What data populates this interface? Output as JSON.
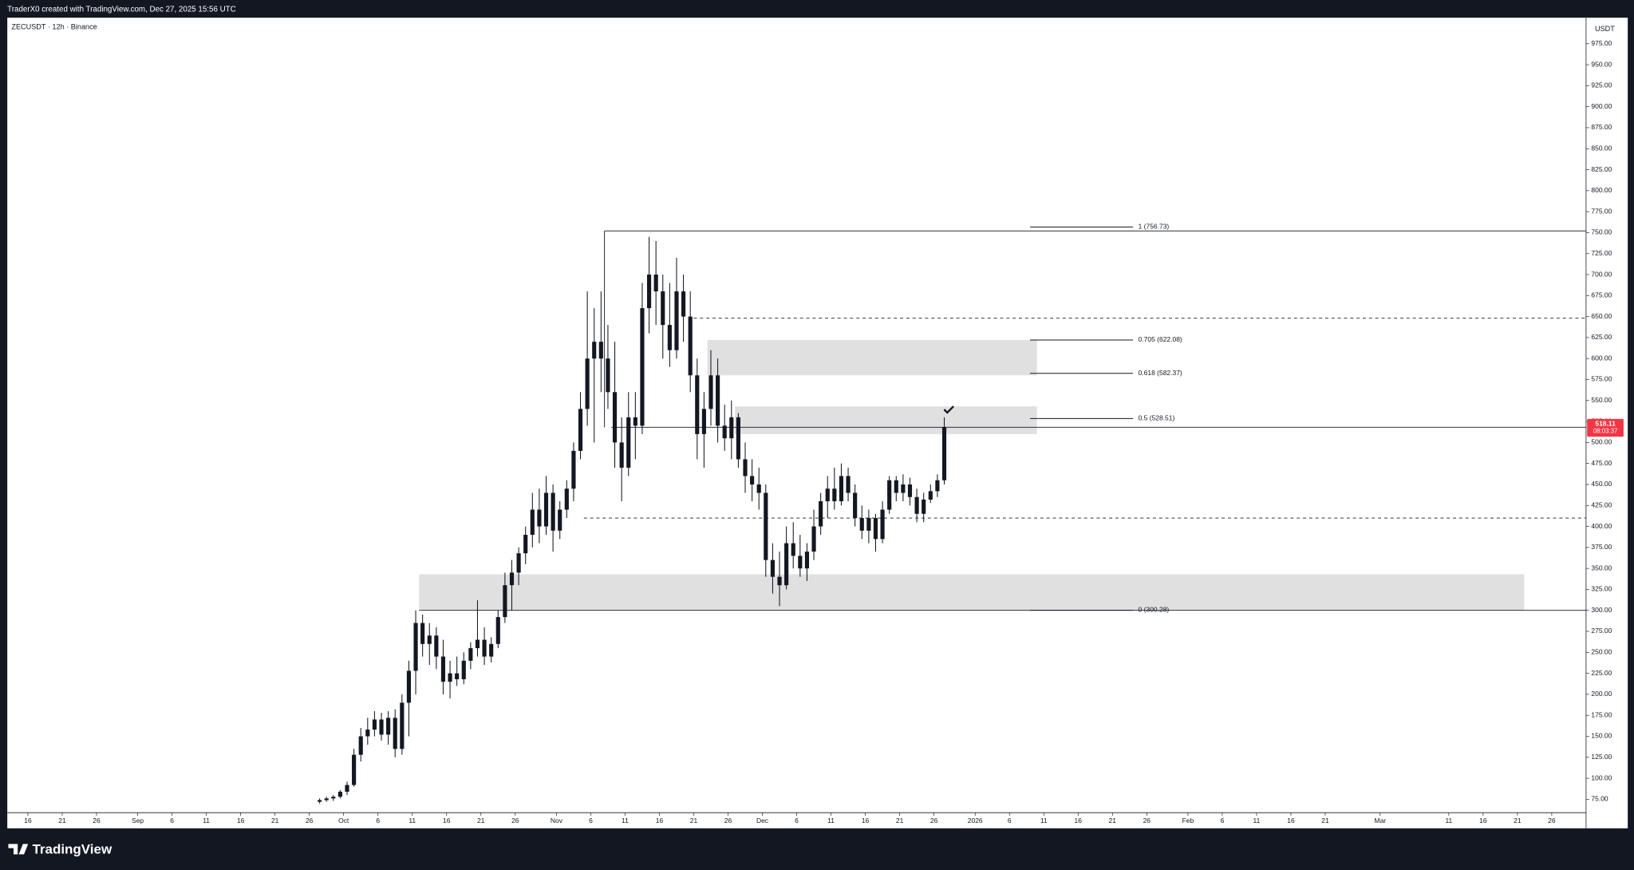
{
  "header": {
    "credit": "TraderX0 created with TradingView.com, Dec 27, 2025 15:56 UTC",
    "brand": "TradingView"
  },
  "chart_data": {
    "type": "candlestick",
    "title": "ZECUSDT · 12h · Binance",
    "y_axis_label": "USDT",
    "color": "#131722",
    "x": [
      "2025-09-27",
      "2025-09-28",
      "2025-09-29",
      "2025-09-30",
      "2025-10-01",
      "2025-10-02",
      "2025-10-03",
      "2025-10-04",
      "2025-10-05",
      "2025-10-06",
      "2025-10-07",
      "2025-10-08",
      "2025-10-09",
      "2025-10-10",
      "2025-10-11",
      "2025-10-12",
      "2025-10-13",
      "2025-10-14",
      "2025-10-15",
      "2025-10-16",
      "2025-10-17",
      "2025-10-18",
      "2025-10-19",
      "2025-10-20",
      "2025-10-21",
      "2025-10-22",
      "2025-10-23",
      "2025-10-24",
      "2025-10-25",
      "2025-10-26",
      "2025-10-27",
      "2025-10-28",
      "2025-10-29",
      "2025-10-30",
      "2025-10-31",
      "2025-11-01",
      "2025-11-02",
      "2025-11-03",
      "2025-11-04",
      "2025-11-05",
      "2025-11-06",
      "2025-11-07",
      "2025-11-08",
      "2025-11-09",
      "2025-11-10",
      "2025-11-11",
      "2025-11-12",
      "2025-11-13",
      "2025-11-14",
      "2025-11-15",
      "2025-11-16",
      "2025-11-17",
      "2025-11-18",
      "2025-11-19",
      "2025-11-20",
      "2025-11-21",
      "2025-11-22",
      "2025-11-23",
      "2025-11-24",
      "2025-11-25",
      "2025-11-26",
      "2025-11-27",
      "2025-11-28",
      "2025-11-29",
      "2025-11-30",
      "2025-12-01",
      "2025-12-02",
      "2025-12-03",
      "2025-12-04",
      "2025-12-05",
      "2025-12-06",
      "2025-12-07",
      "2025-12-08",
      "2025-12-09",
      "2025-12-10",
      "2025-12-11",
      "2025-12-12",
      "2025-12-13",
      "2025-12-14",
      "2025-12-15",
      "2025-12-16",
      "2025-12-17",
      "2025-12-18",
      "2025-12-19",
      "2025-12-20",
      "2025-12-21",
      "2025-12-22",
      "2025-12-23",
      "2025-12-24",
      "2025-12-25",
      "2025-12-26",
      "2025-12-27"
    ],
    "open": [
      72,
      74,
      76,
      78,
      84,
      92,
      128,
      150,
      158,
      170,
      152,
      172,
      135,
      190,
      228,
      285,
      260,
      270,
      245,
      215,
      225,
      218,
      240,
      255,
      265,
      245,
      260,
      292,
      330,
      345,
      368,
      390,
      420,
      400,
      440,
      395,
      420,
      445,
      490,
      540,
      600,
      620,
      600,
      560,
      500,
      470,
      530,
      520,
      660,
      700,
      680,
      640,
      610,
      680,
      650,
      580,
      510,
      540,
      580,
      520,
      505,
      530,
      480,
      460,
      450,
      440,
      360,
      340,
      330,
      380,
      365,
      350,
      370,
      400,
      430,
      445,
      430,
      460,
      440,
      410,
      395,
      410,
      385,
      420,
      455,
      440,
      450,
      435,
      415,
      432,
      442,
      455
    ],
    "high": [
      76,
      78,
      80,
      86,
      96,
      135,
      160,
      172,
      180,
      178,
      180,
      182,
      200,
      240,
      300,
      295,
      285,
      280,
      265,
      240,
      245,
      250,
      262,
      312,
      280,
      268,
      300,
      345,
      360,
      375,
      400,
      440,
      445,
      460,
      450,
      430,
      455,
      500,
      560,
      680,
      660,
      680,
      640,
      620,
      530,
      560,
      560,
      690,
      745,
      740,
      700,
      690,
      720,
      700,
      680,
      600,
      560,
      610,
      600,
      545,
      550,
      535,
      500,
      480,
      470,
      450,
      380,
      370,
      400,
      405,
      390,
      380,
      420,
      440,
      460,
      470,
      475,
      470,
      450,
      425,
      420,
      415,
      430,
      460,
      460,
      462,
      458,
      445,
      440,
      450,
      462,
      530
    ],
    "low": [
      70,
      72,
      73,
      76,
      80,
      90,
      120,
      140,
      150,
      145,
      140,
      125,
      128,
      150,
      200,
      245,
      235,
      230,
      200,
      195,
      210,
      212,
      230,
      245,
      235,
      238,
      255,
      285,
      300,
      330,
      355,
      375,
      380,
      390,
      370,
      385,
      410,
      430,
      480,
      520,
      500,
      560,
      540,
      470,
      430,
      460,
      480,
      510,
      630,
      640,
      600,
      590,
      600,
      620,
      560,
      480,
      470,
      520,
      500,
      490,
      480,
      470,
      440,
      430,
      420,
      340,
      320,
      305,
      325,
      350,
      340,
      335,
      360,
      390,
      410,
      420,
      425,
      430,
      400,
      385,
      380,
      370,
      380,
      415,
      430,
      430,
      425,
      405,
      405,
      428,
      435,
      450
    ],
    "close": [
      74,
      76,
      78,
      84,
      92,
      128,
      150,
      158,
      170,
      152,
      172,
      135,
      190,
      228,
      285,
      260,
      270,
      245,
      215,
      225,
      218,
      240,
      255,
      265,
      245,
      260,
      292,
      330,
      345,
      368,
      390,
      420,
      400,
      440,
      395,
      420,
      445,
      490,
      540,
      600,
      620,
      600,
      560,
      500,
      470,
      530,
      520,
      660,
      700,
      680,
      640,
      610,
      680,
      650,
      580,
      510,
      540,
      580,
      520,
      505,
      530,
      480,
      460,
      450,
      440,
      360,
      340,
      330,
      380,
      365,
      350,
      370,
      400,
      430,
      445,
      430,
      460,
      440,
      410,
      395,
      410,
      385,
      420,
      455,
      440,
      450,
      435,
      415,
      432,
      442,
      455,
      518.11
    ],
    "last_price": 518.11,
    "countdown": "08:03:37",
    "price_tag_color": "#f23645",
    "xlim": [
      "2025-08-13",
      "2026-03-31"
    ],
    "xticks": [
      {
        "value": "2025-08-16",
        "label": "16"
      },
      {
        "value": "2025-08-21",
        "label": "21"
      },
      {
        "value": "2025-08-26",
        "label": "26"
      },
      {
        "value": "2025-09-01",
        "label": "Sep"
      },
      {
        "value": "2025-09-06",
        "label": "6"
      },
      {
        "value": "2025-09-11",
        "label": "11"
      },
      {
        "value": "2025-09-16",
        "label": "16"
      },
      {
        "value": "2025-09-21",
        "label": "21"
      },
      {
        "value": "2025-09-26",
        "label": "26"
      },
      {
        "value": "2025-10-01",
        "label": "Oct"
      },
      {
        "value": "2025-10-06",
        "label": "6"
      },
      {
        "value": "2025-10-11",
        "label": "11"
      },
      {
        "value": "2025-10-16",
        "label": "16"
      },
      {
        "value": "2025-10-21",
        "label": "21"
      },
      {
        "value": "2025-10-26",
        "label": "26"
      },
      {
        "value": "2025-11-01",
        "label": "Nov"
      },
      {
        "value": "2025-11-06",
        "label": "6"
      },
      {
        "value": "2025-11-11",
        "label": "11"
      },
      {
        "value": "2025-11-16",
        "label": "16"
      },
      {
        "value": "2025-11-21",
        "label": "21"
      },
      {
        "value": "2025-11-26",
        "label": "26"
      },
      {
        "value": "2025-12-01",
        "label": "Dec"
      },
      {
        "value": "2025-12-06",
        "label": "6"
      },
      {
        "value": "2025-12-11",
        "label": "11"
      },
      {
        "value": "2025-12-16",
        "label": "16"
      },
      {
        "value": "2025-12-21",
        "label": "21"
      },
      {
        "value": "2025-12-26",
        "label": "26"
      },
      {
        "value": "2026-01-01",
        "label": "2026"
      },
      {
        "value": "2026-01-06",
        "label": "6"
      },
      {
        "value": "2026-01-11",
        "label": "11"
      },
      {
        "value": "2026-01-16",
        "label": "16"
      },
      {
        "value": "2026-01-21",
        "label": "21"
      },
      {
        "value": "2026-01-26",
        "label": "26"
      },
      {
        "value": "2026-02-01",
        "label": "Feb"
      },
      {
        "value": "2026-02-06",
        "label": "6"
      },
      {
        "value": "2026-02-11",
        "label": "11"
      },
      {
        "value": "2026-02-16",
        "label": "16"
      },
      {
        "value": "2026-02-21",
        "label": "21"
      },
      {
        "value": "2026-03-01",
        "label": "Mar"
      },
      {
        "value": "2026-03-11",
        "label": "11"
      },
      {
        "value": "2026-03-16",
        "label": "16"
      },
      {
        "value": "2026-03-21",
        "label": "21"
      },
      {
        "value": "2026-03-26",
        "label": "26"
      }
    ],
    "ylim": [
      59,
      1006
    ],
    "yticks": [
      {
        "value": 75,
        "label": "75.00"
      },
      {
        "value": 100,
        "label": "100.00"
      },
      {
        "value": 125,
        "label": "125.00"
      },
      {
        "value": 150,
        "label": "150.00"
      },
      {
        "value": 175,
        "label": "175.00"
      },
      {
        "value": 200,
        "label": "200.00"
      },
      {
        "value": 225,
        "label": "225.00"
      },
      {
        "value": 250,
        "label": "250.00"
      },
      {
        "value": 275,
        "label": "275.00"
      },
      {
        "value": 300,
        "label": "300.00"
      },
      {
        "value": 325,
        "label": "325.00"
      },
      {
        "value": 350,
        "label": "350.00"
      },
      {
        "value": 375,
        "label": "375.00"
      },
      {
        "value": 400,
        "label": "400.00"
      },
      {
        "value": 425,
        "label": "425.00"
      },
      {
        "value": 450,
        "label": "450.00"
      },
      {
        "value": 475,
        "label": "475.00"
      },
      {
        "value": 500,
        "label": "500.00"
      },
      {
        "value": 525,
        "label": "525.00"
      },
      {
        "value": 550,
        "label": "550.00"
      },
      {
        "value": 575,
        "label": "575.00"
      },
      {
        "value": 600,
        "label": "600.00"
      },
      {
        "value": 625,
        "label": "625.00"
      },
      {
        "value": 650,
        "label": "650.00"
      },
      {
        "value": 675,
        "label": "675.00"
      },
      {
        "value": 700,
        "label": "700.00"
      },
      {
        "value": 725,
        "label": "725.00"
      },
      {
        "value": 750,
        "label": "750.00"
      },
      {
        "value": 775,
        "label": "775.00"
      },
      {
        "value": 800,
        "label": "800.00"
      },
      {
        "value": 825,
        "label": "825.00"
      },
      {
        "value": 850,
        "label": "850.00"
      },
      {
        "value": 875,
        "label": "875.00"
      },
      {
        "value": 900,
        "label": "900.00"
      },
      {
        "value": 925,
        "label": "925.00"
      },
      {
        "value": 950,
        "label": "950.00"
      },
      {
        "value": 975,
        "label": "975.00"
      }
    ],
    "zones": [
      {
        "top": 622,
        "bottom": 580,
        "start": "2025-11-23",
        "end": "2026-01-10"
      },
      {
        "top": 543,
        "bottom": 510,
        "start": "2025-11-27",
        "end": "2026-01-10"
      },
      {
        "top": 343,
        "bottom": 300,
        "start": "2025-10-12",
        "end": "2026-03-22"
      }
    ],
    "levels": [
      {
        "value": 752,
        "start": "2025-11-08",
        "style": "solid"
      },
      {
        "value": 300,
        "start": "2025-10-12",
        "style": "solid"
      },
      {
        "value": 648,
        "start": "2025-11-21",
        "style": "dashed"
      },
      {
        "value": 410,
        "start": "2025-11-05",
        "style": "dashed"
      },
      {
        "value": 518.11,
        "start": "2025-11-09",
        "style": "solid"
      }
    ],
    "fib": [
      {
        "label": "1 (756.73)",
        "value": 756.73
      },
      {
        "label": "0.705 (622.08)",
        "value": 622.08
      },
      {
        "label": "0.618 (582.37)",
        "value": 582.37
      },
      {
        "label": "0.5 (528.51)",
        "value": 528.51
      },
      {
        "label": "0 (300.28)",
        "value": 300.28
      }
    ],
    "fib_start": "2026-01-09",
    "fib_end": "2026-01-24"
  }
}
